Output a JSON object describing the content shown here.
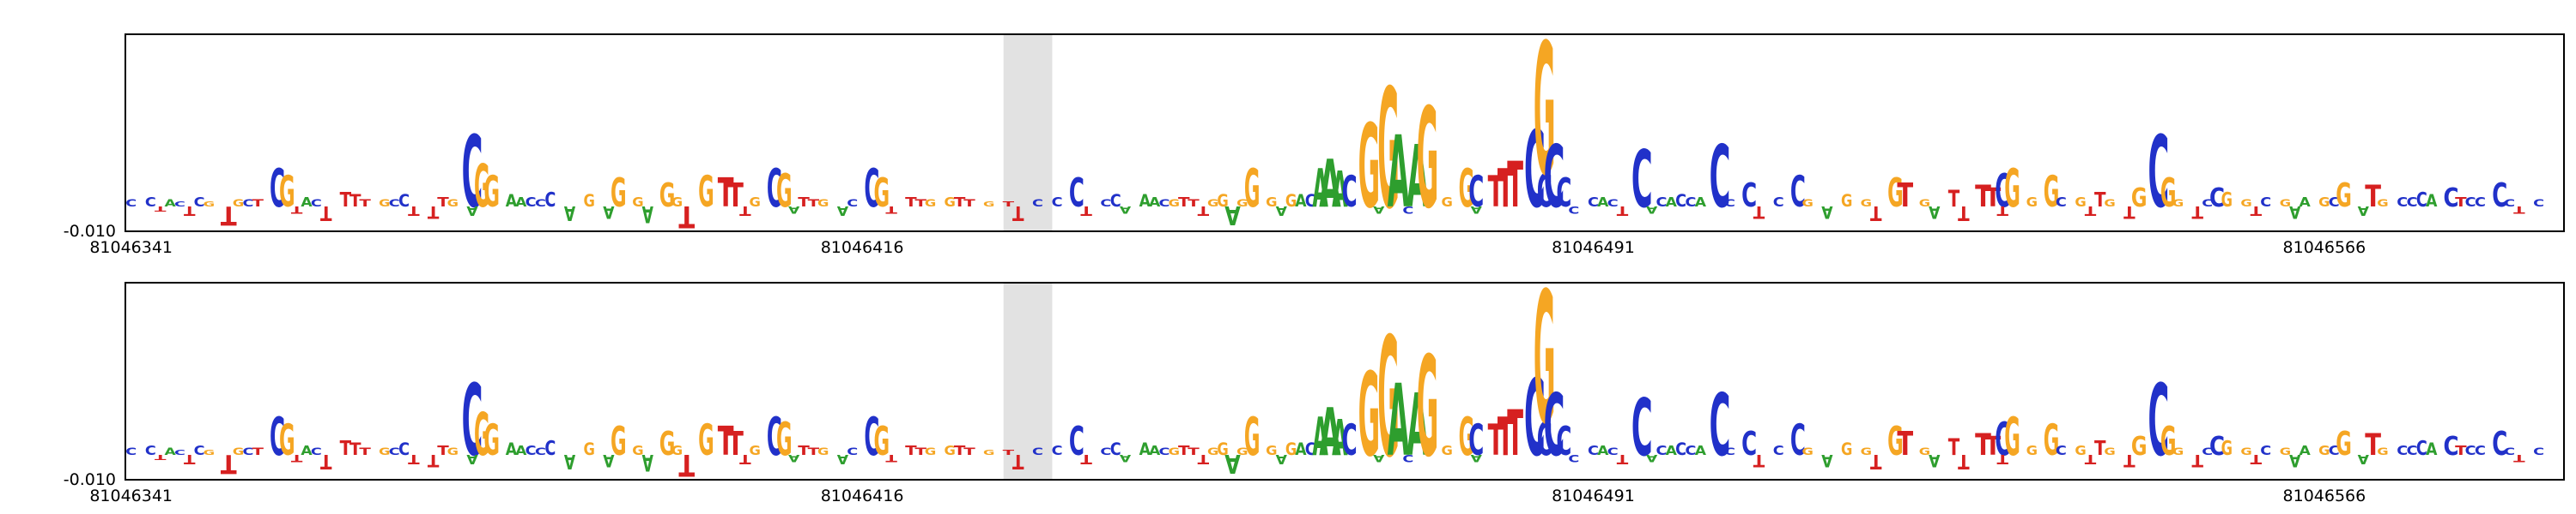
{
  "figure": {
    "y_axis_tick": "-0.010",
    "x_ticks": [
      "81046341",
      "81046416",
      "81046491",
      "81046566"
    ],
    "highlight_color": "#e2e2e2",
    "border_color": "#000000"
  },
  "chart_data": {
    "type": "sequence-logo",
    "description": "Two stacked DNA attribution sequence-logo panels over the same genomic window; letter height = attribution score, downward letters are negative scores. Both panels are essentially identical.",
    "panels": [
      {
        "name": "attribution-logo-top",
        "y_tick": -0.01
      },
      {
        "name": "attribution-logo-bottom",
        "y_tick": -0.01
      }
    ],
    "panels_share_letters": true,
    "x_start": 81046341,
    "x_tick_values": [
      81046341,
      81046416,
      81046491,
      81046566
    ],
    "positions_per_panel": 250,
    "bases_per_tick": 75,
    "y_bottom_value": -0.01,
    "highlight_region": {
      "start_index": 90,
      "end_index": 95
    },
    "base_colors": {
      "A": "#2e9e2e",
      "C": "#2131c9",
      "G": "#f5a623",
      "T": "#d62020"
    },
    "letters": [
      [
        0,
        "C",
        0.003
      ],
      [
        2,
        "C",
        0.004
      ],
      [
        3,
        "T",
        -0.002
      ],
      [
        4,
        "A",
        0.003
      ],
      [
        5,
        "C",
        0.002
      ],
      [
        6,
        "T",
        -0.004
      ],
      [
        7,
        "C",
        0.004
      ],
      [
        8,
        "G",
        0.002
      ],
      [
        10,
        "T",
        -0.008
      ],
      [
        11,
        "G",
        0.003
      ],
      [
        12,
        "C",
        0.003
      ],
      [
        13,
        "T",
        0.003
      ],
      [
        15,
        "C",
        0.016
      ],
      [
        16,
        "G",
        0.013
      ],
      [
        17,
        "T",
        -0.003
      ],
      [
        18,
        "A",
        0.004
      ],
      [
        19,
        "C",
        0.003
      ],
      [
        20,
        "T",
        -0.006
      ],
      [
        22,
        "T",
        0.006
      ],
      [
        23,
        "T",
        0.005
      ],
      [
        24,
        "T",
        0.003
      ],
      [
        26,
        "G",
        0.003
      ],
      [
        27,
        "C",
        0.003
      ],
      [
        28,
        "C",
        0.005
      ],
      [
        29,
        "T",
        -0.004
      ],
      [
        31,
        "T",
        -0.005
      ],
      [
        32,
        "T",
        0.004
      ],
      [
        33,
        "G",
        0.003
      ],
      [
        35,
        "C",
        0.03
      ],
      [
        35,
        "A",
        -0.004
      ],
      [
        36,
        "G",
        0.018
      ],
      [
        37,
        "G",
        0.013
      ],
      [
        39,
        "A",
        0.005
      ],
      [
        40,
        "A",
        0.004
      ],
      [
        41,
        "C",
        0.004
      ],
      [
        42,
        "C",
        0.003
      ],
      [
        43,
        "C",
        0.006
      ],
      [
        45,
        "A",
        -0.006
      ],
      [
        47,
        "G",
        0.005
      ],
      [
        49,
        "A",
        -0.005
      ],
      [
        50,
        "G",
        0.012
      ],
      [
        52,
        "G",
        0.004
      ],
      [
        53,
        "A",
        -0.007
      ],
      [
        55,
        "G",
        0.01
      ],
      [
        56,
        "G",
        0.004
      ],
      [
        57,
        "T",
        -0.009
      ],
      [
        59,
        "G",
        0.013
      ],
      [
        61,
        "T",
        0.012
      ],
      [
        62,
        "T",
        0.01
      ],
      [
        63,
        "T",
        -0.004
      ],
      [
        64,
        "G",
        0.004
      ],
      [
        66,
        "C",
        0.016
      ],
      [
        67,
        "G",
        0.014
      ],
      [
        68,
        "A",
        -0.003
      ],
      [
        69,
        "T",
        0.004
      ],
      [
        70,
        "T",
        0.003
      ],
      [
        71,
        "G",
        0.003
      ],
      [
        73,
        "A",
        -0.004
      ],
      [
        74,
        "C",
        0.003
      ],
      [
        76,
        "C",
        0.016
      ],
      [
        77,
        "G",
        0.012
      ],
      [
        78,
        "T",
        -0.003
      ],
      [
        80,
        "T",
        0.004
      ],
      [
        81,
        "T",
        0.003
      ],
      [
        82,
        "G",
        0.003
      ],
      [
        84,
        "G",
        0.004
      ],
      [
        85,
        "T",
        0.004
      ],
      [
        86,
        "T",
        0.003
      ],
      [
        88,
        "G",
        0.002
      ],
      [
        90,
        "T",
        0.002
      ],
      [
        91,
        "T",
        -0.006
      ],
      [
        93,
        "C",
        0.003
      ],
      [
        95,
        "C",
        0.004
      ],
      [
        97,
        "C",
        0.012
      ],
      [
        98,
        "T",
        -0.004
      ],
      [
        100,
        "C",
        0.003
      ],
      [
        101,
        "C",
        0.005
      ],
      [
        102,
        "A",
        -0.003
      ],
      [
        104,
        "A",
        0.005
      ],
      [
        105,
        "A",
        0.004
      ],
      [
        106,
        "C",
        0.003
      ],
      [
        107,
        "G",
        0.003
      ],
      [
        108,
        "T",
        0.004
      ],
      [
        109,
        "T",
        0.003
      ],
      [
        110,
        "T",
        -0.004
      ],
      [
        111,
        "G",
        0.003
      ],
      [
        112,
        "G",
        0.005
      ],
      [
        113,
        "A",
        -0.008
      ],
      [
        114,
        "G",
        0.003
      ],
      [
        115,
        "G",
        0.016
      ],
      [
        117,
        "G",
        0.004
      ],
      [
        118,
        "A",
        -0.004
      ],
      [
        119,
        "G",
        0.005
      ],
      [
        120,
        "A",
        0.005
      ],
      [
        121,
        "C",
        0.005
      ],
      [
        122,
        "A",
        0.016
      ],
      [
        123,
        "A",
        0.02
      ],
      [
        124,
        "A",
        0.015
      ],
      [
        125,
        "C",
        0.013
      ],
      [
        127,
        "G",
        0.035
      ],
      [
        128,
        "A",
        -0.003
      ],
      [
        129,
        "G",
        0.05
      ],
      [
        130,
        "A",
        0.03
      ],
      [
        131,
        "C",
        -0.003
      ],
      [
        132,
        "A",
        0.026
      ],
      [
        133,
        "G",
        0.042
      ],
      [
        135,
        "G",
        0.004
      ],
      [
        137,
        "G",
        0.016
      ],
      [
        138,
        "C",
        0.013
      ],
      [
        138,
        "A",
        -0.003
      ],
      [
        140,
        "T",
        0.013
      ],
      [
        141,
        "T",
        0.016
      ],
      [
        142,
        "T",
        0.019
      ],
      [
        144,
        "C",
        0.032
      ],
      [
        145,
        "C",
        0.014
      ],
      [
        145,
        "G",
        0.055
      ],
      [
        146,
        "C",
        0.026
      ],
      [
        147,
        "C",
        0.012
      ],
      [
        148,
        "C",
        -0.003
      ],
      [
        150,
        "C",
        0.004
      ],
      [
        151,
        "A",
        0.004
      ],
      [
        152,
        "C",
        0.003
      ],
      [
        153,
        "T",
        -0.004
      ],
      [
        155,
        "C",
        0.024
      ],
      [
        156,
        "A",
        -0.003
      ],
      [
        157,
        "C",
        0.004
      ],
      [
        158,
        "A",
        0.004
      ],
      [
        159,
        "C",
        0.005
      ],
      [
        160,
        "C",
        0.004
      ],
      [
        161,
        "A",
        0.004
      ],
      [
        163,
        "C",
        0.026
      ],
      [
        164,
        "C",
        0.003
      ],
      [
        166,
        "C",
        0.01
      ],
      [
        167,
        "T",
        -0.005
      ],
      [
        169,
        "C",
        0.004
      ],
      [
        171,
        "C",
        0.013
      ],
      [
        172,
        "G",
        0.003
      ],
      [
        174,
        "A",
        -0.005
      ],
      [
        176,
        "G",
        0.005
      ],
      [
        178,
        "G",
        0.003
      ],
      [
        179,
        "T",
        -0.006
      ],
      [
        181,
        "G",
        0.012
      ],
      [
        182,
        "T",
        0.01
      ],
      [
        184,
        "G",
        0.003
      ],
      [
        185,
        "A",
        -0.005
      ],
      [
        187,
        "T",
        0.007
      ],
      [
        188,
        "T",
        -0.006
      ],
      [
        190,
        "T",
        0.009
      ],
      [
        191,
        "T",
        0.008
      ],
      [
        192,
        "C",
        0.014
      ],
      [
        192,
        "T",
        -0.004
      ],
      [
        193,
        "G",
        0.016
      ],
      [
        195,
        "G",
        0.004
      ],
      [
        197,
        "G",
        0.013
      ],
      [
        198,
        "C",
        0.004
      ],
      [
        200,
        "G",
        0.004
      ],
      [
        201,
        "T",
        -0.004
      ],
      [
        202,
        "T",
        0.006
      ],
      [
        203,
        "G",
        0.003
      ],
      [
        205,
        "T",
        -0.005
      ],
      [
        206,
        "G",
        0.008
      ],
      [
        208,
        "C",
        0.03
      ],
      [
        209,
        "G",
        0.012
      ],
      [
        210,
        "G",
        0.003
      ],
      [
        212,
        "T",
        -0.005
      ],
      [
        213,
        "C",
        0.003
      ],
      [
        214,
        "C",
        0.008
      ],
      [
        215,
        "G",
        0.006
      ],
      [
        217,
        "G",
        0.003
      ],
      [
        218,
        "T",
        -0.004
      ],
      [
        219,
        "C",
        0.004
      ],
      [
        221,
        "G",
        0.003
      ],
      [
        222,
        "A",
        -0.005
      ],
      [
        223,
        "A",
        0.004
      ],
      [
        225,
        "G",
        0.004
      ],
      [
        226,
        "C",
        0.004
      ],
      [
        227,
        "G",
        0.01
      ],
      [
        229,
        "A",
        -0.004
      ],
      [
        230,
        "T",
        0.009
      ],
      [
        231,
        "G",
        0.003
      ],
      [
        233,
        "C",
        0.004
      ],
      [
        234,
        "C",
        0.004
      ],
      [
        235,
        "C",
        0.006
      ],
      [
        236,
        "A",
        0.005
      ],
      [
        238,
        "C",
        0.008
      ],
      [
        239,
        "T",
        0.004
      ],
      [
        240,
        "C",
        0.004
      ],
      [
        241,
        "C",
        0.004
      ],
      [
        243,
        "C",
        0.01
      ],
      [
        244,
        "C",
        0.003
      ],
      [
        245,
        "T",
        -0.003
      ],
      [
        247,
        "C",
        0.003
      ]
    ]
  }
}
